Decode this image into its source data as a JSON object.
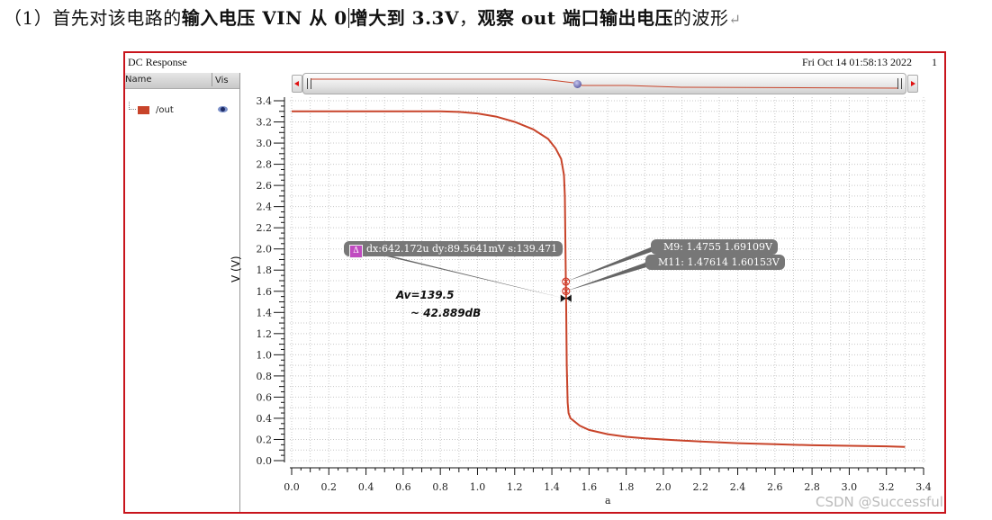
{
  "caption": {
    "prefix": "（1）首先对该电路的",
    "bold1": "输入电压 VIN 从 0",
    "bold2": "增大到 3.3V",
    "sep": "，",
    "bold3": "观察 out 端口输出电压",
    "suffix": "的波形",
    "return_mark": "↵"
  },
  "window": {
    "title": "DC Response",
    "date": "Fri Oct 14 01:58:13 2022",
    "page_number": "1",
    "border_color": "#c8141c"
  },
  "legend": {
    "col_name": "Name",
    "col_vis": "Vis",
    "signals": [
      {
        "name": "/out",
        "color": "#c8442a",
        "visible": true,
        "icon": "eye-icon"
      }
    ]
  },
  "scrollbar": {
    "left_arrow": "left-arrow-icon",
    "right_arrow": "right-arrow-icon"
  },
  "markers": {
    "delta": {
      "label": "Δ",
      "text": "dx:642.172u dy:89.5641mV s:139.471"
    },
    "m9": {
      "text": "M9: 1.4755 1.69109V",
      "x": 1.4755,
      "y": 1.69109
    },
    "m11": {
      "text": "M11: 1.47614 1.60153V",
      "x": 1.47614,
      "y": 1.60153
    }
  },
  "annotations": {
    "gain": "Av=139.5",
    "gain_db": "~ 42.889dB"
  },
  "watermark": "CSDN @Successful",
  "chart_data": {
    "type": "line",
    "title": "DC Response",
    "xlabel": "a",
    "ylabel": "V (V)",
    "xlim": [
      0.0,
      3.4
    ],
    "ylim": [
      0.0,
      3.4
    ],
    "grid": true,
    "x_ticks": [
      "0.0",
      "0.2",
      "0.4",
      "0.6",
      "0.8",
      "1.0",
      "1.2",
      "1.4",
      "1.6",
      "1.8",
      "2.0",
      "2.2",
      "2.4",
      "2.6",
      "2.8",
      "3.0",
      "3.2",
      "3.4"
    ],
    "y_ticks": [
      "0.0",
      "0.2",
      "0.4",
      "0.6",
      "0.8",
      "1.0",
      "1.2",
      "1.4",
      "1.6",
      "1.8",
      "2.0",
      "2.2",
      "2.4",
      "2.6",
      "2.8",
      "3.0",
      "3.2",
      "3.4"
    ],
    "series": [
      {
        "name": "/out",
        "color": "#c8442a",
        "x": [
          0.0,
          0.5,
          0.8,
          0.9,
          1.0,
          1.1,
          1.2,
          1.3,
          1.38,
          1.42,
          1.45,
          1.465,
          1.47,
          1.4755,
          1.47614,
          1.48,
          1.485,
          1.49,
          1.5,
          1.55,
          1.6,
          1.7,
          1.8,
          1.9,
          2.0,
          2.2,
          2.4,
          2.6,
          2.8,
          3.0,
          3.2,
          3.3
        ],
        "y": [
          3.3,
          3.3,
          3.3,
          3.295,
          3.28,
          3.25,
          3.2,
          3.13,
          3.04,
          2.95,
          2.85,
          2.7,
          2.5,
          1.69109,
          1.60153,
          0.9,
          0.55,
          0.45,
          0.4,
          0.33,
          0.29,
          0.25,
          0.225,
          0.21,
          0.2,
          0.18,
          0.165,
          0.155,
          0.145,
          0.14,
          0.135,
          0.13
        ]
      }
    ]
  }
}
